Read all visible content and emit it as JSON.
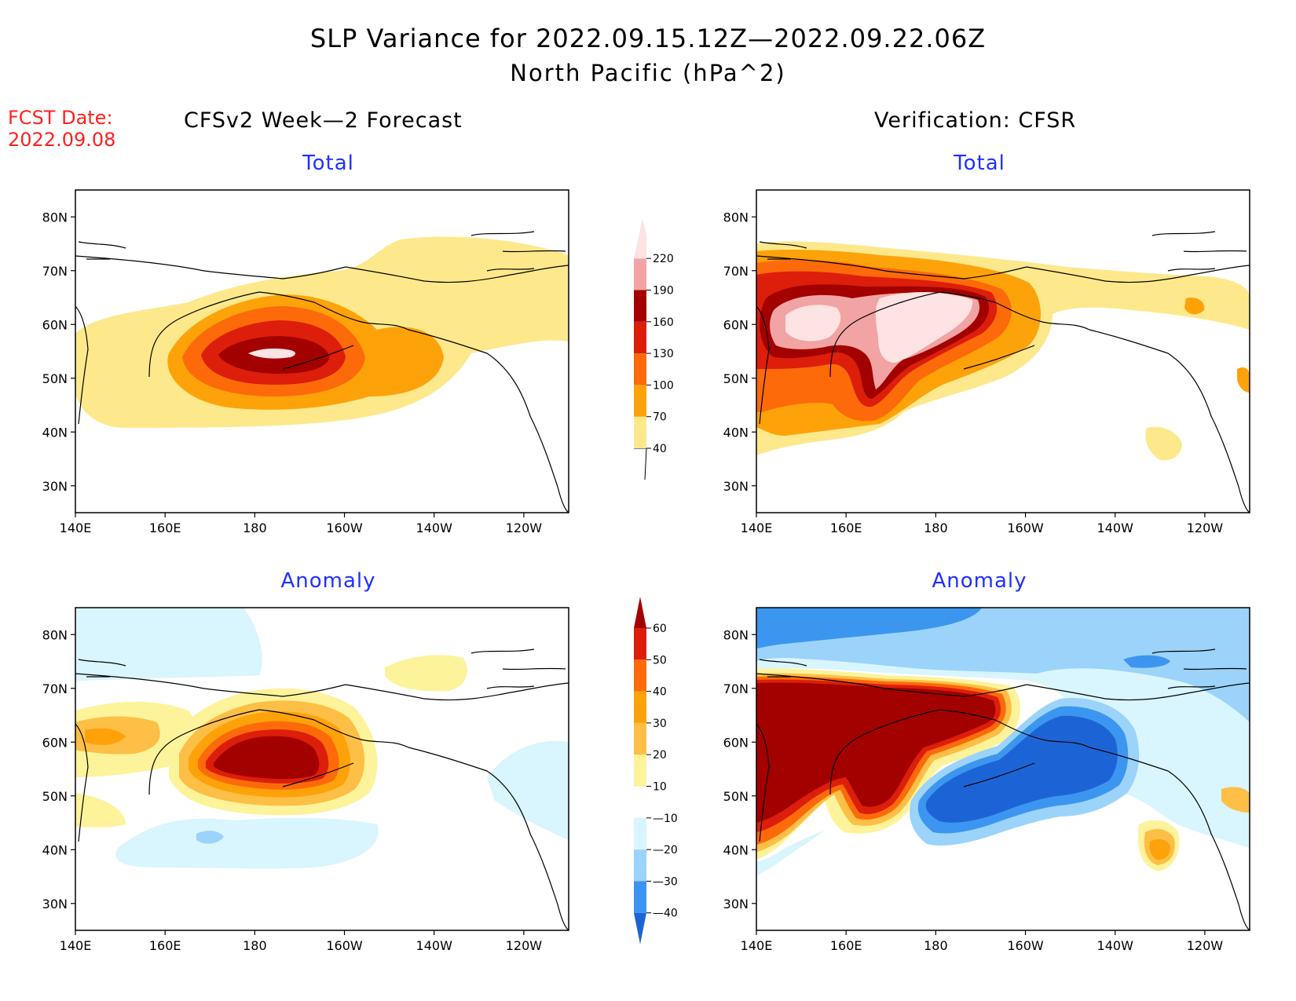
{
  "title": {
    "line1": "SLP Variance for 2022.09.15.12Z—2022.09.22.06Z",
    "line2": "North Pacific (hPa^2)"
  },
  "fcst": {
    "label": "FCST Date:",
    "date": "2022.09.08"
  },
  "columns": {
    "left": "CFSv2 Week—2 Forecast",
    "right": "Verification: CFSR"
  },
  "panels": {
    "top_left": "Total",
    "top_right": "Total",
    "bottom_left": "Anomaly",
    "bottom_right": "Anomaly"
  },
  "axes": {
    "lat_labels": [
      "80N",
      "70N",
      "60N",
      "50N",
      "40N",
      "30N"
    ],
    "lat_values": [
      80,
      70,
      60,
      50,
      40,
      30
    ],
    "lon_labels": [
      "140E",
      "160E",
      "180",
      "160W",
      "140W",
      "120W"
    ],
    "lon_values": [
      140,
      160,
      180,
      200,
      220,
      240
    ],
    "lat_range": [
      25,
      85
    ],
    "lon_range": [
      140,
      250
    ]
  },
  "colorbars": {
    "total": {
      "levels": [
        "40",
        "70",
        "100",
        "130",
        "160",
        "190",
        "220"
      ],
      "colors": [
        "#fde98c",
        "#fea20a",
        "#fd6a0a",
        "#dc1e0b",
        "#a30000",
        "#f2a3a3",
        "#fde3e3"
      ]
    },
    "anomaly": {
      "levels": [
        "60",
        "50",
        "40",
        "30",
        "20",
        "10",
        "—10",
        "—20",
        "—30",
        "—40"
      ],
      "colors": [
        "#a30000",
        "#dc1e0b",
        "#fd6a0a",
        "#fea20a",
        "#fdbf45",
        "#fdf39a",
        "#ffffff",
        "#d9f5fd",
        "#9bd3fa",
        "#3c96f0",
        "#1c64d6"
      ]
    }
  },
  "colors": {
    "total_40": "#fde98c",
    "total_70": "#fea20a",
    "total_100": "#fd6a0a",
    "total_130": "#dc1e0b",
    "total_160": "#a30000",
    "total_190": "#f2a3a3",
    "total_220": "#fde3e3",
    "anom_pos10": "#fdf39a",
    "anom_pos20": "#fdbf45",
    "anom_pos30": "#fea20a",
    "anom_pos40": "#fd6a0a",
    "anom_pos50": "#dc1e0b",
    "anom_pos60": "#a30000",
    "anom_neg10": "#d9f5fd",
    "anom_neg20": "#9bd3fa",
    "anom_neg30": "#3c96f0",
    "anom_neg40": "#1c64d6",
    "title_blue": "#2030ff",
    "fcst_red": "#ff2020"
  }
}
